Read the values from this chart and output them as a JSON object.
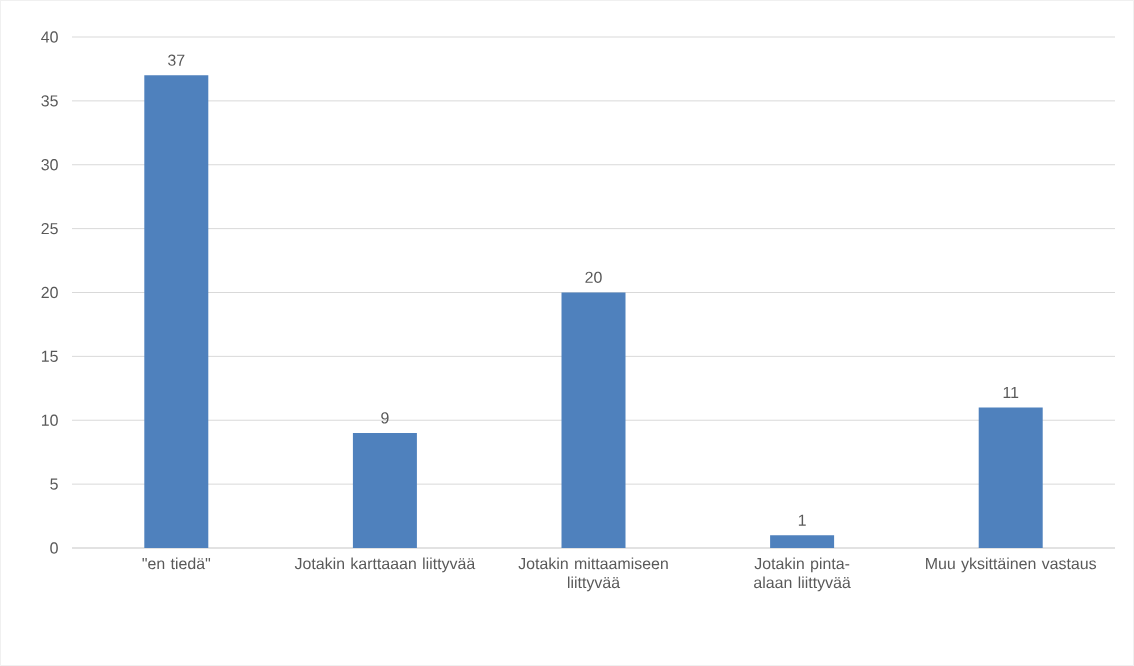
{
  "chart_data": {
    "type": "bar",
    "categories": [
      "\"en tiedä\"",
      "Jotakin karttaaan liittyvää",
      "Jotakin mittaamiseen liittyvää",
      "Jotakin pinta-alaan liittyvää",
      "Muu yksittäinen vastaus"
    ],
    "values": [
      37,
      9,
      20,
      1,
      11
    ],
    "color": "#4f81bd",
    "ylim": [
      0,
      40
    ],
    "yticks": [
      0,
      5,
      10,
      15,
      20,
      25,
      30,
      35,
      40
    ],
    "grid": "y",
    "data_labels": true
  }
}
